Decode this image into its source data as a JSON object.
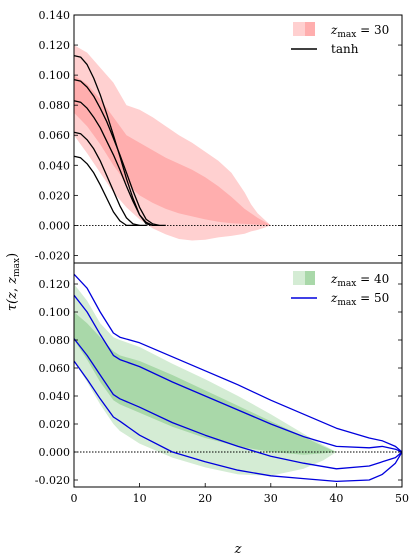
{
  "chart_data": [
    {
      "type": "area",
      "panel": "top",
      "ylim": [
        -0.025,
        0.14
      ],
      "xlim": [
        0,
        50
      ],
      "yticks": [
        -0.02,
        0.0,
        0.02,
        0.04,
        0.06,
        0.08,
        0.1,
        0.12,
        0.14
      ],
      "ytick_labels": [
        "-0.020",
        "0.000",
        "0.020",
        "0.040",
        "0.060",
        "0.080",
        "0.100",
        "0.120",
        "0.140"
      ],
      "legend": {
        "position": "top-right",
        "entries": [
          "z_max = 30",
          "tanh"
        ]
      },
      "bands": [
        {
          "name": "z_max = 30 (outer)",
          "color": "#ffd0d0",
          "x": [
            0,
            2,
            4,
            6,
            8,
            10,
            12,
            14,
            16,
            18,
            20,
            22,
            24,
            26,
            27,
            28,
            29,
            30
          ],
          "upper": [
            0.12,
            0.115,
            0.105,
            0.095,
            0.08,
            0.077,
            0.072,
            0.066,
            0.06,
            0.055,
            0.049,
            0.043,
            0.035,
            0.022,
            0.014,
            0.008,
            0.004,
            0.0
          ],
          "lower": [
            0.06,
            0.048,
            0.035,
            0.022,
            0.012,
            0.004,
            -0.002,
            -0.006,
            -0.009,
            -0.01,
            -0.0095,
            -0.008,
            -0.007,
            -0.0055,
            -0.004,
            -0.003,
            -0.0015,
            0.0
          ]
        },
        {
          "name": "z_max = 30 (inner)",
          "color": "#ffaeae",
          "x": [
            0,
            2,
            4,
            6,
            8,
            10,
            12,
            14,
            16,
            18,
            20,
            22,
            24,
            26,
            28,
            30
          ],
          "upper": [
            0.1,
            0.094,
            0.084,
            0.072,
            0.06,
            0.055,
            0.05,
            0.045,
            0.041,
            0.037,
            0.032,
            0.026,
            0.019,
            0.011,
            0.005,
            0.0
          ],
          "lower": [
            0.075,
            0.066,
            0.054,
            0.04,
            0.028,
            0.02,
            0.015,
            0.011,
            0.008,
            0.006,
            0.004,
            0.0025,
            0.0015,
            0.001,
            0.0005,
            0.0
          ]
        }
      ],
      "series": [
        {
          "name": "tanh",
          "color": "#000000",
          "x": [
            0,
            1,
            2,
            3,
            4,
            5,
            6,
            7,
            8,
            9,
            10,
            11,
            12
          ],
          "values": [
            0.113,
            0.112,
            0.107,
            0.098,
            0.087,
            0.074,
            0.06,
            0.046,
            0.031,
            0.018,
            0.007,
            0.001,
            0.0
          ]
        },
        {
          "color": "#000000",
          "x": [
            0,
            1,
            2,
            3,
            4,
            5,
            6,
            7,
            8,
            9,
            10,
            11,
            12,
            13,
            14
          ],
          "values": [
            0.097,
            0.096,
            0.092,
            0.086,
            0.078,
            0.069,
            0.058,
            0.047,
            0.035,
            0.023,
            0.012,
            0.004,
            0.001,
            0.0,
            0.0
          ]
        },
        {
          "color": "#000000",
          "x": [
            0,
            1,
            2,
            3,
            4,
            5,
            6,
            7,
            8,
            9,
            10,
            11,
            12,
            13
          ],
          "values": [
            0.083,
            0.082,
            0.078,
            0.072,
            0.065,
            0.056,
            0.047,
            0.037,
            0.026,
            0.016,
            0.007,
            0.002,
            0.0,
            0.0
          ]
        },
        {
          "color": "#000000",
          "x": [
            0,
            1,
            2,
            3,
            4,
            5,
            6,
            7,
            8,
            9,
            10,
            11
          ],
          "values": [
            0.062,
            0.061,
            0.057,
            0.051,
            0.043,
            0.033,
            0.023,
            0.013,
            0.005,
            0.001,
            0.0,
            0.0
          ]
        },
        {
          "color": "#000000",
          "x": [
            0,
            1,
            2,
            3,
            4,
            5,
            6,
            7,
            8,
            9,
            10
          ],
          "values": [
            0.046,
            0.045,
            0.041,
            0.035,
            0.027,
            0.018,
            0.009,
            0.003,
            0.0,
            0.0,
            0.0
          ]
        }
      ],
      "baseline": 0.0
    },
    {
      "type": "area",
      "panel": "bottom",
      "xlabel": "z",
      "ylim": [
        -0.025,
        0.135
      ],
      "xlim": [
        0,
        50
      ],
      "xticks": [
        0,
        10,
        20,
        30,
        40,
        50
      ],
      "xtick_labels": [
        "0",
        "10",
        "20",
        "30",
        "40",
        "50"
      ],
      "yticks": [
        -0.02,
        0.0,
        0.02,
        0.04,
        0.06,
        0.08,
        0.1,
        0.12
      ],
      "ytick_labels": [
        "-0.020",
        "0.000",
        "0.020",
        "0.040",
        "0.060",
        "0.080",
        "0.100",
        "0.120"
      ],
      "legend": {
        "position": "top-right",
        "entries": [
          "z_max = 40",
          "z_max = 50"
        ]
      },
      "bands": [
        {
          "name": "z_max = 40 (outer)",
          "color": "#d4ecd4",
          "x": [
            0,
            2,
            4,
            6,
            7,
            10,
            15,
            20,
            25,
            30,
            35,
            38,
            40
          ],
          "upper": [
            0.12,
            0.108,
            0.092,
            0.082,
            0.08,
            0.075,
            0.063,
            0.052,
            0.04,
            0.027,
            0.013,
            0.005,
            0.0
          ],
          "lower": [
            0.065,
            0.05,
            0.034,
            0.02,
            0.015,
            0.006,
            -0.004,
            -0.011,
            -0.016,
            -0.017,
            -0.012,
            -0.006,
            0.0
          ]
        },
        {
          "name": "z_max = 40 (inner)",
          "color": "#a9d8a9",
          "x": [
            0,
            2,
            4,
            6,
            7,
            10,
            15,
            20,
            25,
            30,
            35,
            38,
            40
          ],
          "upper": [
            0.1,
            0.092,
            0.082,
            0.072,
            0.069,
            0.065,
            0.055,
            0.044,
            0.033,
            0.022,
            0.011,
            0.004,
            0.0
          ],
          "lower": [
            0.08,
            0.066,
            0.05,
            0.037,
            0.034,
            0.028,
            0.018,
            0.01,
            0.004,
            0.0,
            -0.002,
            -0.001,
            0.0
          ]
        }
      ],
      "series": [
        {
          "name": "z_max = 50",
          "color": "#0000dd",
          "x": [
            0,
            2,
            4,
            6,
            7,
            10,
            15,
            20,
            25,
            30,
            35,
            40,
            45,
            47,
            49,
            50
          ],
          "values": [
            0.127,
            0.117,
            0.1,
            0.085,
            0.082,
            0.078,
            0.068,
            0.058,
            0.048,
            0.037,
            0.027,
            0.017,
            0.01,
            0.008,
            0.004,
            0.0
          ]
        },
        {
          "color": "#0000dd",
          "x": [
            0,
            2,
            4,
            6,
            7,
            10,
            15,
            20,
            25,
            30,
            35,
            40,
            45,
            47,
            49,
            50
          ],
          "values": [
            0.112,
            0.1,
            0.084,
            0.069,
            0.066,
            0.061,
            0.05,
            0.04,
            0.03,
            0.02,
            0.011,
            0.004,
            0.003,
            0.004,
            0.002,
            0.0
          ]
        },
        {
          "color": "#0000dd",
          "x": [
            0,
            2,
            4,
            6,
            7,
            10,
            15,
            20,
            25,
            30,
            35,
            40,
            45,
            47,
            49,
            50
          ],
          "values": [
            0.081,
            0.069,
            0.055,
            0.041,
            0.038,
            0.032,
            0.021,
            0.012,
            0.004,
            -0.003,
            -0.008,
            -0.012,
            -0.01,
            -0.007,
            -0.004,
            0.0
          ]
        },
        {
          "color": "#0000dd",
          "x": [
            0,
            2,
            4,
            6,
            7,
            10,
            15,
            20,
            25,
            30,
            35,
            40,
            45,
            47,
            49,
            50
          ],
          "values": [
            0.065,
            0.052,
            0.038,
            0.025,
            0.022,
            0.012,
            0.0,
            -0.007,
            -0.013,
            -0.017,
            -0.019,
            -0.021,
            -0.02,
            -0.016,
            -0.008,
            0.0
          ]
        }
      ],
      "baseline": 0.0
    }
  ],
  "shared": {
    "ylabel": "τ(z, z_max)",
    "xlabel": "z"
  },
  "legend_labels": {
    "zmax30_pre": "z",
    "zmax30_sub": "max",
    "zmax30_post": " = 30",
    "tanh": "tanh",
    "zmax40_pre": "z",
    "zmax40_sub": "max",
    "zmax40_post": " = 40",
    "zmax50_pre": "z",
    "zmax50_sub": "max",
    "zmax50_post": " = 50"
  },
  "ylabel_parts": {
    "tau": "τ(",
    "z": "z",
    "comma": ", ",
    "zmax_z": "z",
    "zmax_sub": "max",
    "close": ")"
  }
}
